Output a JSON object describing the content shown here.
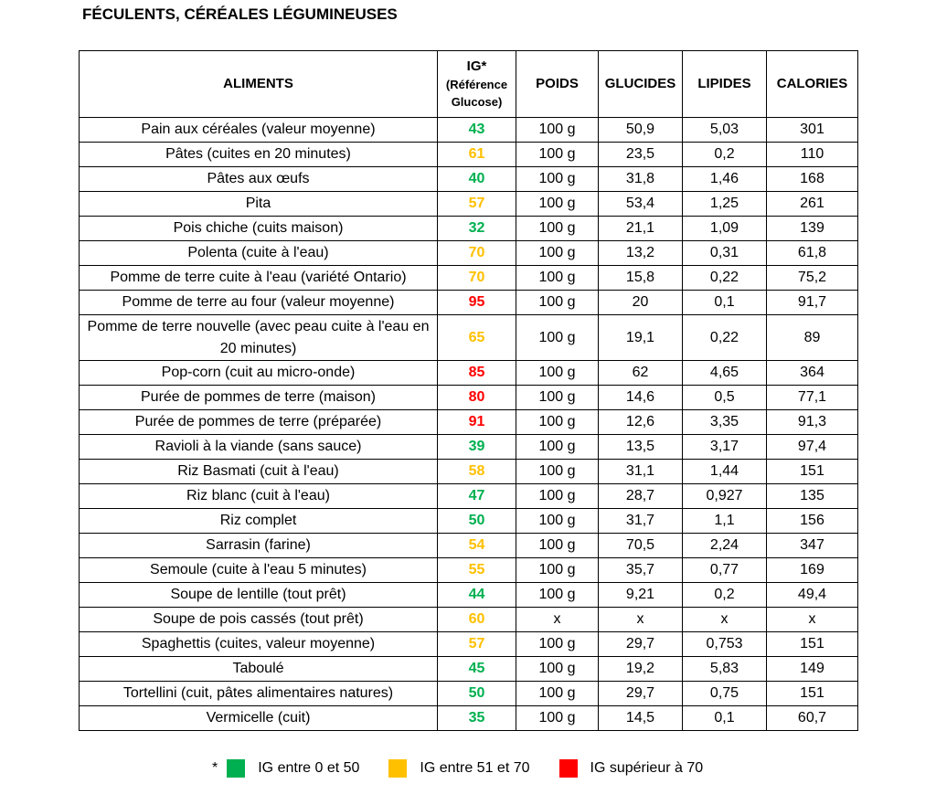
{
  "title": "FÉCULENTS, CÉRÉALES LÉGUMINEUSES",
  "headers": {
    "aliments": "ALIMENTS",
    "ig_main": "IG*",
    "ig_sub1": "(Référence",
    "ig_sub2": "Glucose)",
    "poids": "POIDS",
    "glucides": "GLUCIDES",
    "lipides": "LIPIDES",
    "calories": "CALORIES"
  },
  "colors": {
    "green": "#00b050",
    "orange": "#ffc000",
    "red": "#ff0000"
  },
  "rows": [
    {
      "name": "Pain aux céréales (valeur moyenne)",
      "ig": "43",
      "level": "green",
      "poids": "100 g",
      "glucides": "50,9",
      "lipides": "5,03",
      "calories": "301"
    },
    {
      "name": "Pâtes (cuites en 20 minutes)",
      "ig": "61",
      "level": "orange",
      "poids": "100 g",
      "glucides": "23,5",
      "lipides": "0,2",
      "calories": "110"
    },
    {
      "name": "Pâtes aux œufs",
      "ig": "40",
      "level": "green",
      "poids": "100 g",
      "glucides": "31,8",
      "lipides": "1,46",
      "calories": "168"
    },
    {
      "name": "Pita",
      "ig": "57",
      "level": "orange",
      "poids": "100 g",
      "glucides": "53,4",
      "lipides": "1,25",
      "calories": "261"
    },
    {
      "name": "Pois chiche (cuits maison)",
      "ig": "32",
      "level": "green",
      "poids": "100 g",
      "glucides": "21,1",
      "lipides": "1,09",
      "calories": "139"
    },
    {
      "name": "Polenta (cuite à l'eau)",
      "ig": "70",
      "level": "orange",
      "poids": "100 g",
      "glucides": "13,2",
      "lipides": "0,31",
      "calories": "61,8"
    },
    {
      "name": "Pomme de terre cuite à l'eau (variété Ontario)",
      "ig": "70",
      "level": "orange",
      "poids": "100 g",
      "glucides": "15,8",
      "lipides": "0,22",
      "calories": "75,2"
    },
    {
      "name": "Pomme de terre au four (valeur moyenne)",
      "ig": "95",
      "level": "red",
      "poids": "100 g",
      "glucides": "20",
      "lipides": "0,1",
      "calories": "91,7"
    },
    {
      "name": "Pomme de terre nouvelle (avec peau cuite à l'eau en 20 minutes)",
      "ig": "65",
      "level": "orange",
      "poids": "100 g",
      "glucides": "19,1",
      "lipides": "0,22",
      "calories": "89",
      "tall": true
    },
    {
      "name": "Pop-corn (cuit au micro-onde)",
      "ig": "85",
      "level": "red",
      "poids": "100 g",
      "glucides": "62",
      "lipides": "4,65",
      "calories": "364"
    },
    {
      "name": "Purée de pommes de terre (maison)",
      "ig": "80",
      "level": "red",
      "poids": "100 g",
      "glucides": "14,6",
      "lipides": "0,5",
      "calories": "77,1"
    },
    {
      "name": "Purée de pommes de terre (préparée)",
      "ig": "91",
      "level": "red",
      "poids": "100 g",
      "glucides": "12,6",
      "lipides": "3,35",
      "calories": "91,3"
    },
    {
      "name": "Ravioli à la viande (sans sauce)",
      "ig": "39",
      "level": "green",
      "poids": "100 g",
      "glucides": "13,5",
      "lipides": "3,17",
      "calories": "97,4"
    },
    {
      "name": "Riz Basmati (cuit à l'eau)",
      "ig": "58",
      "level": "orange",
      "poids": "100 g",
      "glucides": "31,1",
      "lipides": "1,44",
      "calories": "151"
    },
    {
      "name": "Riz blanc (cuit à l'eau)",
      "ig": "47",
      "level": "green",
      "poids": "100 g",
      "glucides": "28,7",
      "lipides": "0,927",
      "calories": "135"
    },
    {
      "name": "Riz complet",
      "ig": "50",
      "level": "green",
      "poids": "100 g",
      "glucides": "31,7",
      "lipides": "1,1",
      "calories": "156"
    },
    {
      "name": "Sarrasin (farine)",
      "ig": "54",
      "level": "orange",
      "poids": "100 g",
      "glucides": "70,5",
      "lipides": "2,24",
      "calories": "347"
    },
    {
      "name": "Semoule (cuite à l'eau 5 minutes)",
      "ig": "55",
      "level": "orange",
      "poids": "100 g",
      "glucides": "35,7",
      "lipides": "0,77",
      "calories": "169"
    },
    {
      "name": "Soupe de lentille (tout prêt)",
      "ig": "44",
      "level": "green",
      "poids": "100 g",
      "glucides": "9,21",
      "lipides": "0,2",
      "calories": "49,4"
    },
    {
      "name": "Soupe de pois cassés (tout prêt)",
      "ig": "60",
      "level": "orange",
      "poids": "x",
      "glucides": "x",
      "lipides": "x",
      "calories": "x"
    },
    {
      "name": "Spaghettis (cuites, valeur moyenne)",
      "ig": "57",
      "level": "orange",
      "poids": "100 g",
      "glucides": "29,7",
      "lipides": "0,753",
      "calories": "151"
    },
    {
      "name": "Taboulé",
      "ig": "45",
      "level": "green",
      "poids": "100 g",
      "glucides": "19,2",
      "lipides": "5,83",
      "calories": "149"
    },
    {
      "name": "Tortellini (cuit, pâtes alimentaires natures)",
      "ig": "50",
      "level": "green",
      "poids": "100 g",
      "glucides": "29,7",
      "lipides": "0,75",
      "calories": "151"
    },
    {
      "name": "Vermicelle (cuit)",
      "ig": "35",
      "level": "green",
      "poids": "100 g",
      "glucides": "14,5",
      "lipides": "0,1",
      "calories": "60,7"
    }
  ],
  "legend": {
    "star": "*",
    "items": [
      {
        "label": "IG entre 0 et 50",
        "color": "#00b050"
      },
      {
        "label": "IG entre 51 et 70",
        "color": "#ffc000"
      },
      {
        "label": "IG supérieur à 70",
        "color": "#ff0000"
      }
    ]
  }
}
